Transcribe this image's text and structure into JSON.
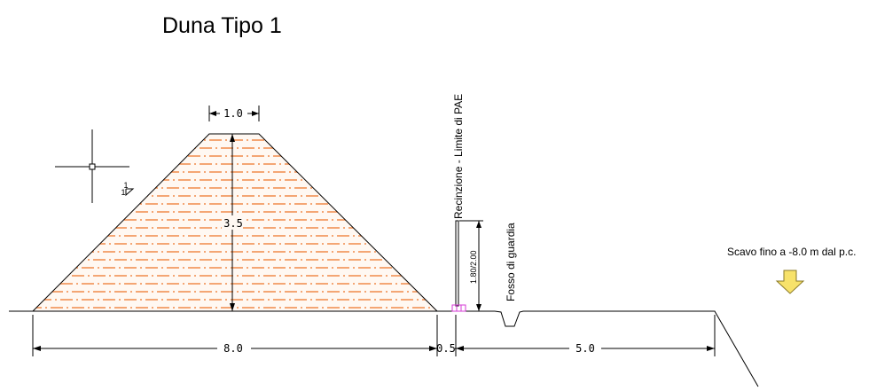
{
  "title": "Duna Tipo 1",
  "labels": {
    "fence": "Recinzione - Limite di PAE",
    "fence_height": "1.80/2.00",
    "ditch": "Fosso di guardia",
    "excavation": "Scavo fino a -8.0 m dal p.c."
  },
  "dimensions": {
    "top_width": "1.0",
    "height": "3.5",
    "base_width": "8.0",
    "offset": "0.5",
    "berm": "5.0"
  },
  "slope": {
    "rise": "1",
    "run": "1"
  },
  "colors": {
    "fill_hatch": "#f08a4b",
    "fence_marker": "#d63bd6",
    "arrow_fill": "#f7e26b",
    "arrow_stroke": "#8a7a2a"
  },
  "icons": [
    "crosshair-cursor-icon",
    "down-arrow-icon"
  ]
}
